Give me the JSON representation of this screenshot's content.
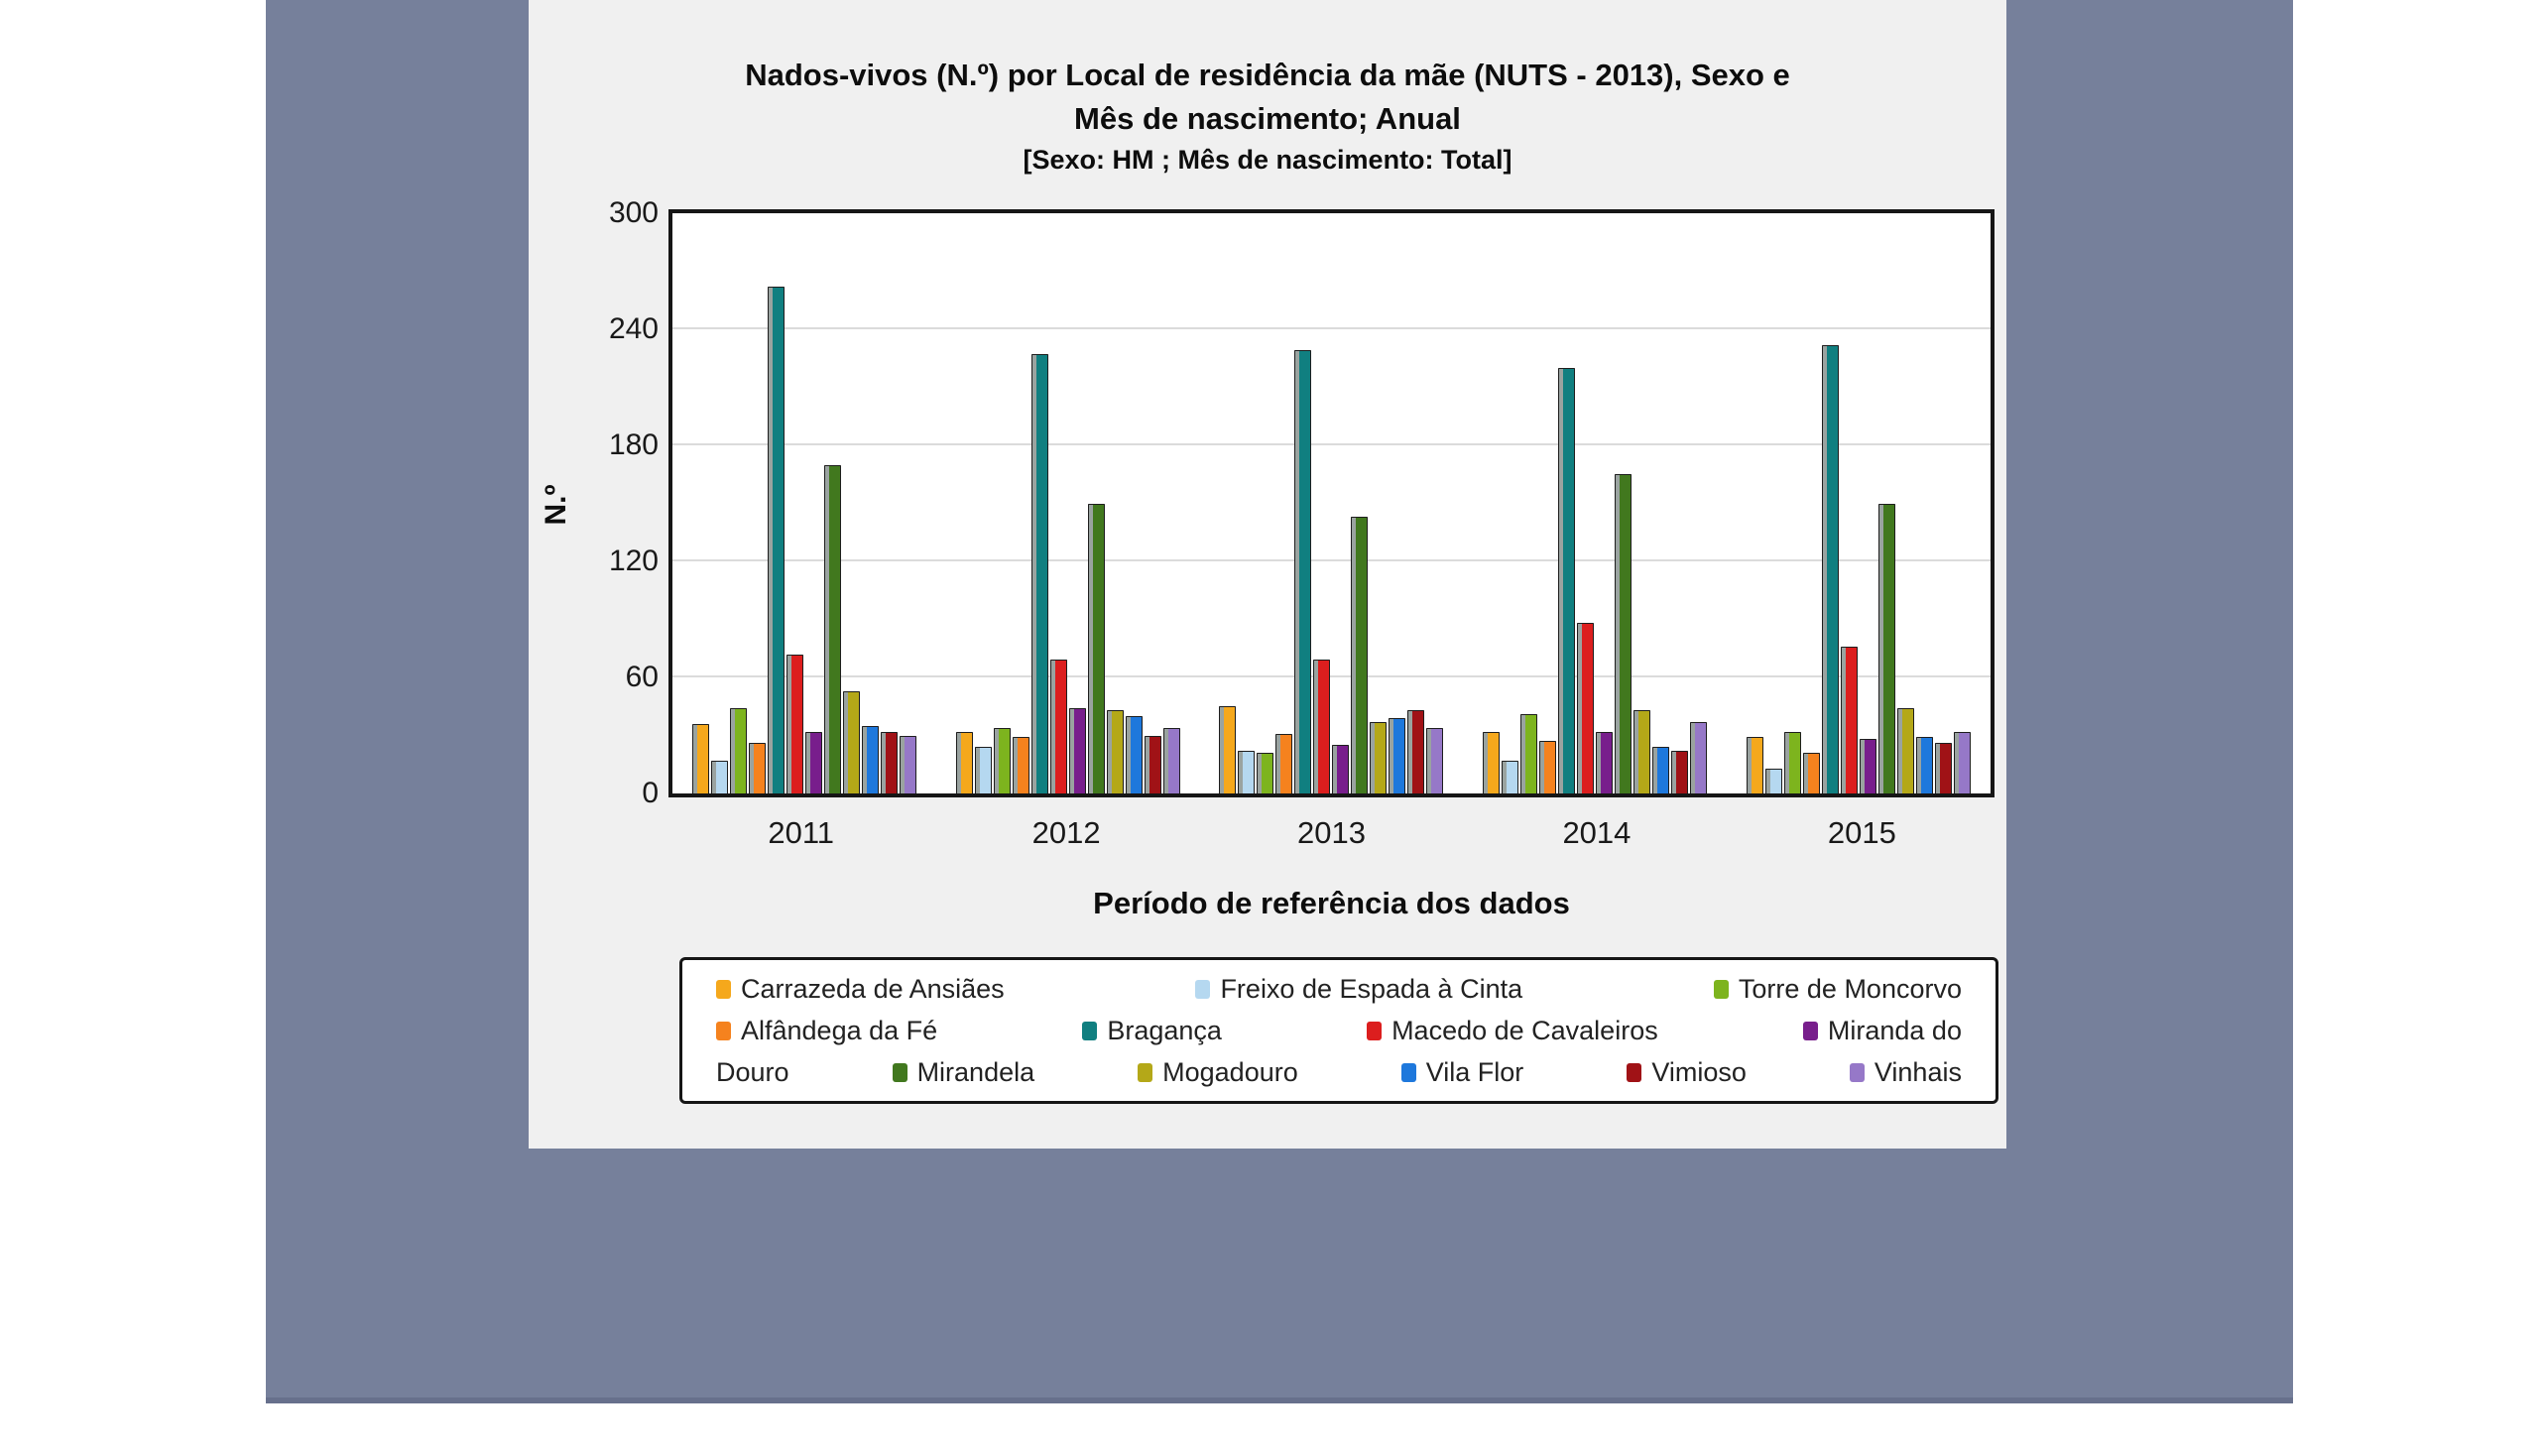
{
  "page": {
    "background": "#FFFFFF",
    "backdrop_color": "#76809B",
    "panel_color": "#F0F0F0"
  },
  "chart": {
    "title_line1": "Nados-vivos (N.º) por Local de residência da mãe (NUTS - 2013), Sexo e",
    "title_line2": "Mês de nascimento; Anual"
  },
  "chart_data": {
    "type": "bar",
    "title": "Nados-vivos (N.º) por Local de residência da mãe (NUTS - 2013), Sexo e Mês de nascimento; Anual",
    "subtitle": "[Sexo: HM ; Mês de nascimento: Total]",
    "xlabel": "Período de referência dos dados",
    "ylabel": "N.º",
    "ylim": [
      0,
      300
    ],
    "yticks": [
      0,
      60,
      120,
      180,
      240,
      300
    ],
    "grid": true,
    "legend_position": "bottom",
    "categories": [
      "2011",
      "2012",
      "2013",
      "2014",
      "2015"
    ],
    "series": [
      {
        "name": "Carrazeda de Ansiães",
        "color": "#F5A81C",
        "values": [
          36,
          32,
          45,
          32,
          29
        ]
      },
      {
        "name": "Freixo de Espada à Cinta",
        "color": "#B5D8F0",
        "values": [
          17,
          24,
          22,
          17,
          13
        ]
      },
      {
        "name": "Torre de Moncorvo",
        "color": "#7DB41E",
        "values": [
          44,
          34,
          21,
          41,
          32
        ]
      },
      {
        "name": "Alfândega da Fé",
        "color": "#F5821E",
        "values": [
          26,
          29,
          31,
          27,
          21
        ]
      },
      {
        "name": "Bragança",
        "color": "#107F80",
        "values": [
          262,
          227,
          229,
          220,
          232
        ]
      },
      {
        "name": "Macedo de Cavaleiros",
        "color": "#DC1E1E",
        "values": [
          72,
          69,
          69,
          88,
          76
        ]
      },
      {
        "name": "Miranda do Douro",
        "color": "#781E8C",
        "values": [
          32,
          44,
          25,
          32,
          28
        ]
      },
      {
        "name": "Mirandela",
        "color": "#41781E",
        "values": [
          170,
          150,
          143,
          165,
          150
        ]
      },
      {
        "name": "Mogadouro",
        "color": "#B4A818",
        "values": [
          53,
          43,
          37,
          43,
          44
        ]
      },
      {
        "name": "Vila Flor",
        "color": "#1E78DC",
        "values": [
          35,
          40,
          39,
          24,
          29
        ]
      },
      {
        "name": "Vimioso",
        "color": "#A01216",
        "values": [
          32,
          30,
          43,
          22,
          26
        ]
      },
      {
        "name": "Vinhais",
        "color": "#9678C8",
        "values": [
          30,
          34,
          34,
          37,
          32
        ]
      }
    ]
  },
  "legend": {
    "rows": [
      [
        {
          "swatch": 0,
          "text": "Carrazeda de Ansiães"
        },
        {
          "swatch": 1,
          "text": "Freixo de Espada à Cinta"
        },
        {
          "swatch": 2,
          "text": "Torre de Moncorvo"
        }
      ],
      [
        {
          "swatch": 3,
          "text": "Alfândega da Fé"
        },
        {
          "swatch": 4,
          "text": "Bragança"
        },
        {
          "swatch": 5,
          "text": "Macedo de Cavaleiros"
        },
        {
          "swatch": 6,
          "text": "Miranda do"
        }
      ],
      [
        {
          "swatch": null,
          "text": "Douro"
        },
        {
          "swatch": 7,
          "text": "Mirandela"
        },
        {
          "swatch": 8,
          "text": "Mogadouro"
        },
        {
          "swatch": 9,
          "text": "Vila Flor"
        },
        {
          "swatch": 10,
          "text": "Vimioso"
        },
        {
          "swatch": 11,
          "text": "Vinhais"
        }
      ]
    ]
  }
}
